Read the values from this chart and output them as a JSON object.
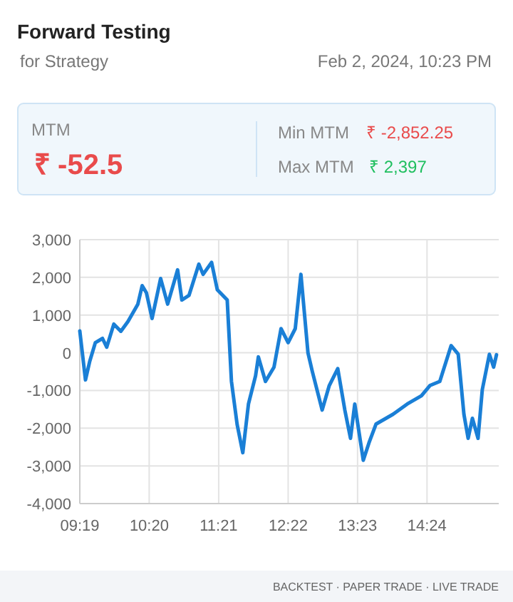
{
  "chart_data": {
    "type": "line",
    "title": "Forward Testing",
    "subtitle": "for Strategy",
    "annotations": [
      "Feb 2, 2024, 10:23 PM",
      "MTM",
      "₹ -52.5",
      "Min MTM",
      "₹ -2,852.25",
      "Max MTM",
      "₹ 2,397",
      "BACKTEST · PAPER TRADE · LIVE TRADE"
    ],
    "xlim": [
      9.317,
      15.45
    ],
    "xticks": [
      {
        "value": 9.317,
        "label": "09:19"
      },
      {
        "value": 10.333,
        "label": "10:20"
      },
      {
        "value": 11.35,
        "label": "11:21"
      },
      {
        "value": 12.367,
        "label": "12:22"
      },
      {
        "value": 13.383,
        "label": "13:23"
      },
      {
        "value": 14.4,
        "label": "14:24"
      }
    ],
    "ylim": [
      -4000,
      3000
    ],
    "yticks": [
      {
        "value": -4000,
        "label": "-4,000"
      },
      {
        "value": -3000,
        "label": "-3,000"
      },
      {
        "value": -2000,
        "label": "-2,000"
      },
      {
        "value": -1000,
        "label": "-1,000"
      },
      {
        "value": 0,
        "label": "0"
      },
      {
        "value": 1000,
        "label": "1,000"
      },
      {
        "value": 2000,
        "label": "2,000"
      },
      {
        "value": 3000,
        "label": "3,000"
      }
    ],
    "grid": true,
    "marker": "none",
    "line_style": "solid",
    "x": [
      9.317,
      9.4,
      9.462,
      9.545,
      9.649,
      9.711,
      9.815,
      9.918,
      10.022,
      10.167,
      10.23,
      10.292,
      10.375,
      10.5,
      10.603,
      10.749,
      10.811,
      10.915,
      11.06,
      11.122,
      11.246,
      11.33,
      11.475,
      11.537,
      11.62,
      11.703,
      11.786,
      11.89,
      11.931,
      12.035,
      12.16,
      12.263,
      12.367,
      12.471,
      12.554,
      12.657,
      12.72,
      12.865,
      12.969,
      13.093,
      13.197,
      13.28,
      13.342,
      13.467,
      13.55,
      13.654,
      13.903,
      14.11,
      14.318,
      14.442,
      14.587,
      14.753,
      14.857,
      14.94,
      15.002,
      15.064,
      15.147,
      15.209,
      15.313,
      15.375,
      15.417
    ],
    "series": [
      {
        "color": "#1a7fd6",
        "values": [
          580,
          -720,
          -230,
          270,
          380,
          150,
          760,
          570,
          830,
          1290,
          1780,
          1590,
          910,
          1970,
          1290,
          2200,
          1400,
          1520,
          2350,
          2080,
          2397,
          1670,
          1400,
          -760,
          -1900,
          -2650,
          -1360,
          -610,
          -110,
          -760,
          -380,
          640,
          270,
          640,
          2080,
          0,
          -490,
          -1520,
          -870,
          -420,
          -1520,
          -2270,
          -1360,
          -2852,
          -2390,
          -1890,
          -1630,
          -1360,
          -1140,
          -870,
          -760,
          190,
          -40,
          -1630,
          -2270,
          -1740,
          -2270,
          -980,
          -40,
          -380,
          -52.5
        ]
      }
    ]
  }
}
